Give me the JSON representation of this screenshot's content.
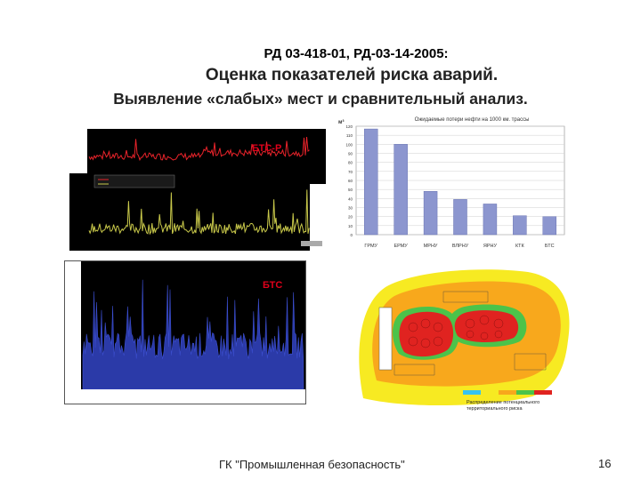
{
  "slide": {
    "title_line1_a": "РД 03-418-01, РД-03-14-2005",
    "title_line1_b": ":",
    "title_line2": "Оценка показателей риска аварий.",
    "title_line3": "Выявление «слабых» мест и сравнительный анализ.",
    "footer": "ГК \"Промышленная безопасность\"",
    "page_number": "16"
  },
  "panel_top_left": {
    "label": "БТС-Р"
  },
  "panel_bottom_left": {
    "label": "БТС"
  },
  "risk_map": {
    "caption_line1": "Распределение потенциального",
    "caption_line2": "территориального риска"
  },
  "colors": {
    "label_red": "#e0001b",
    "bar": "#8c96cf",
    "signal_blue": "#2b3aa8"
  },
  "chart_data": {
    "type": "bar",
    "title": "Ожидаемые потери нефти на 1000 км. трассы",
    "ylabel": "м³",
    "categories": [
      "ГРМУ",
      "ЕРМУ",
      "МРНУ",
      "ВЛРНУ",
      "ЯРНУ",
      "КТК",
      "БТС"
    ],
    "values": [
      117,
      100,
      48,
      39,
      34,
      21,
      20
    ],
    "ylim": [
      0,
      120
    ],
    "yticks": [
      "0",
      "10",
      "20",
      "30",
      "40",
      "50",
      "60",
      "70",
      "80",
      "90",
      "100",
      "110",
      "120"
    ],
    "grid": true
  }
}
